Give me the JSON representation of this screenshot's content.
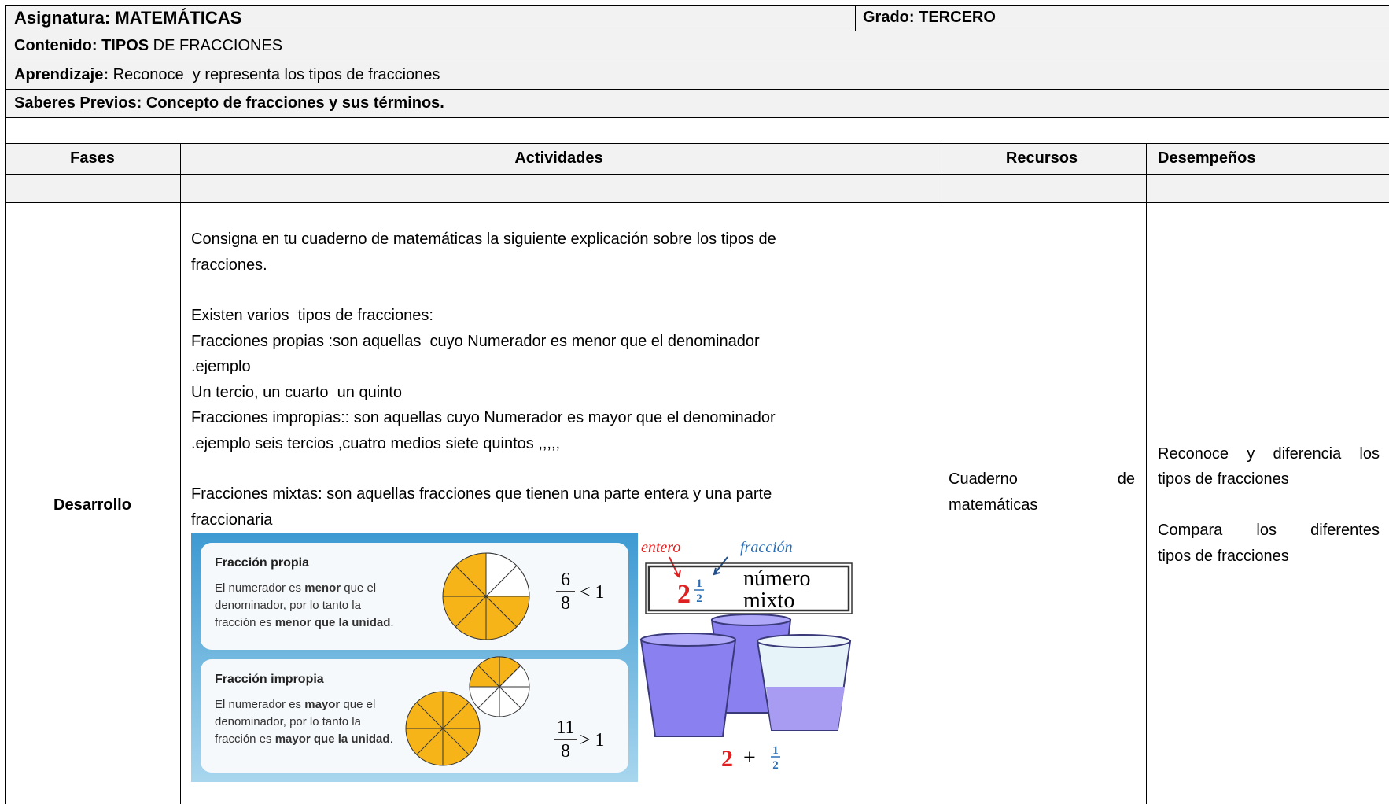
{
  "header": {
    "asignatura": {
      "label": "Asignatura:",
      "value": "MATEMÁTICAS"
    },
    "grado": {
      "label": "Grado:",
      "value": "TERCERO"
    },
    "contenido": {
      "label": "Contenido: TIPOS",
      "value": "DE FRACCIONES"
    },
    "aprendizaje": {
      "label": "Aprendizaje:",
      "value": "Reconoce  y representa los tipos de fracciones"
    },
    "saberes_previos": "Saberes Previos: Concepto de fracciones y sus términos."
  },
  "table": {
    "columns": [
      "Fases",
      "Actividades",
      "Recursos",
      "Desempeños"
    ],
    "rows": [
      {
        "fase": "Desarrollo",
        "actividades": [
          "Consigna en tu cuaderno de matemáticas la siguiente explicación sobre los tipos de",
          "fracciones.",
          "Existen varios  tipos de fracciones:",
          "Fracciones propias :son aquellas  cuyo Numerador es menor que el denominador",
          ".ejemplo",
          "Un tercio, un cuarto  un quinto",
          "Fracciones impropias:: son aquellas cuyo Numerador es mayor que el denominador",
          ".ejemplo seis tercios ,cuatro medios siete quintos ,,,,,",
          "Fracciones mixtas: son aquellas fracciones que tienen una parte entera y una parte",
          "fraccionaria"
        ],
        "recursos": [
          "Cuaderno de",
          "matemáticas"
        ],
        "desempenos": [
          [
            "Reconoce y diferencia los",
            "tipos de fracciones"
          ],
          [
            "Compara los diferentes",
            "tipos de fracciones"
          ]
        ]
      }
    ]
  },
  "illustration": {
    "propia": {
      "title": "Fracción propia",
      "description": [
        [
          "El numerador es ",
          "menor",
          " que el"
        ],
        [
          "denominador, por lo tanto la"
        ],
        [
          "fracción es ",
          "menor que la unidad",
          "."
        ]
      ],
      "numerator": "6",
      "denominator": "8",
      "relation": "< 1"
    },
    "impropia": {
      "title": "Fracción impropia",
      "description": [
        [
          "El numerador es ",
          "mayor",
          " que el"
        ],
        [
          "denominador, por lo tanto la"
        ],
        [
          "fracción es ",
          "mayor que la unidad",
          "."
        ]
      ],
      "numerator": "11",
      "denominator": "8",
      "relation": "> 1"
    },
    "mixto": {
      "entero": "entero",
      "fraccion": "fracción",
      "whole": "2",
      "numerator": "1",
      "denominator": "2",
      "label": [
        "número",
        "mixto"
      ],
      "sum": {
        "whole": "2",
        "operator": "+",
        "numerator": "1",
        "denominator": "2"
      }
    }
  }
}
